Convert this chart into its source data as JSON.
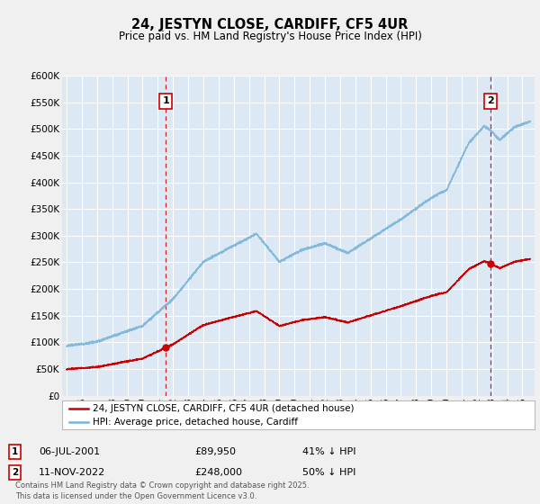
{
  "title": "24, JESTYN CLOSE, CARDIFF, CF5 4UR",
  "subtitle": "Price paid vs. HM Land Registry's House Price Index (HPI)",
  "ylim": [
    0,
    600000
  ],
  "yticks": [
    0,
    50000,
    100000,
    150000,
    200000,
    250000,
    300000,
    350000,
    400000,
    450000,
    500000,
    550000,
    600000
  ],
  "hpi_color": "#7ab4d8",
  "price_color": "#cc0000",
  "vline_color": "#cc0000",
  "background_color": "#e8f0f8",
  "plot_bg_color": "#dce8f4",
  "grid_color": "#ffffff",
  "legend1_label": "24, JESTYN CLOSE, CARDIFF, CF5 4UR (detached house)",
  "legend2_label": "HPI: Average price, detached house, Cardiff",
  "point1_date": "06-JUL-2001",
  "point1_price": "£89,950",
  "point1_hpi": "41% ↓ HPI",
  "point2_date": "11-NOV-2022",
  "point2_price": "£248,000",
  "point2_hpi": "50% ↓ HPI",
  "footer": "Contains HM Land Registry data © Crown copyright and database right 2025.\nThis data is licensed under the Open Government Licence v3.0.",
  "sale1_year": 2001.54,
  "sale1_price": 89950,
  "sale2_year": 2022.87,
  "sale2_price": 248000
}
